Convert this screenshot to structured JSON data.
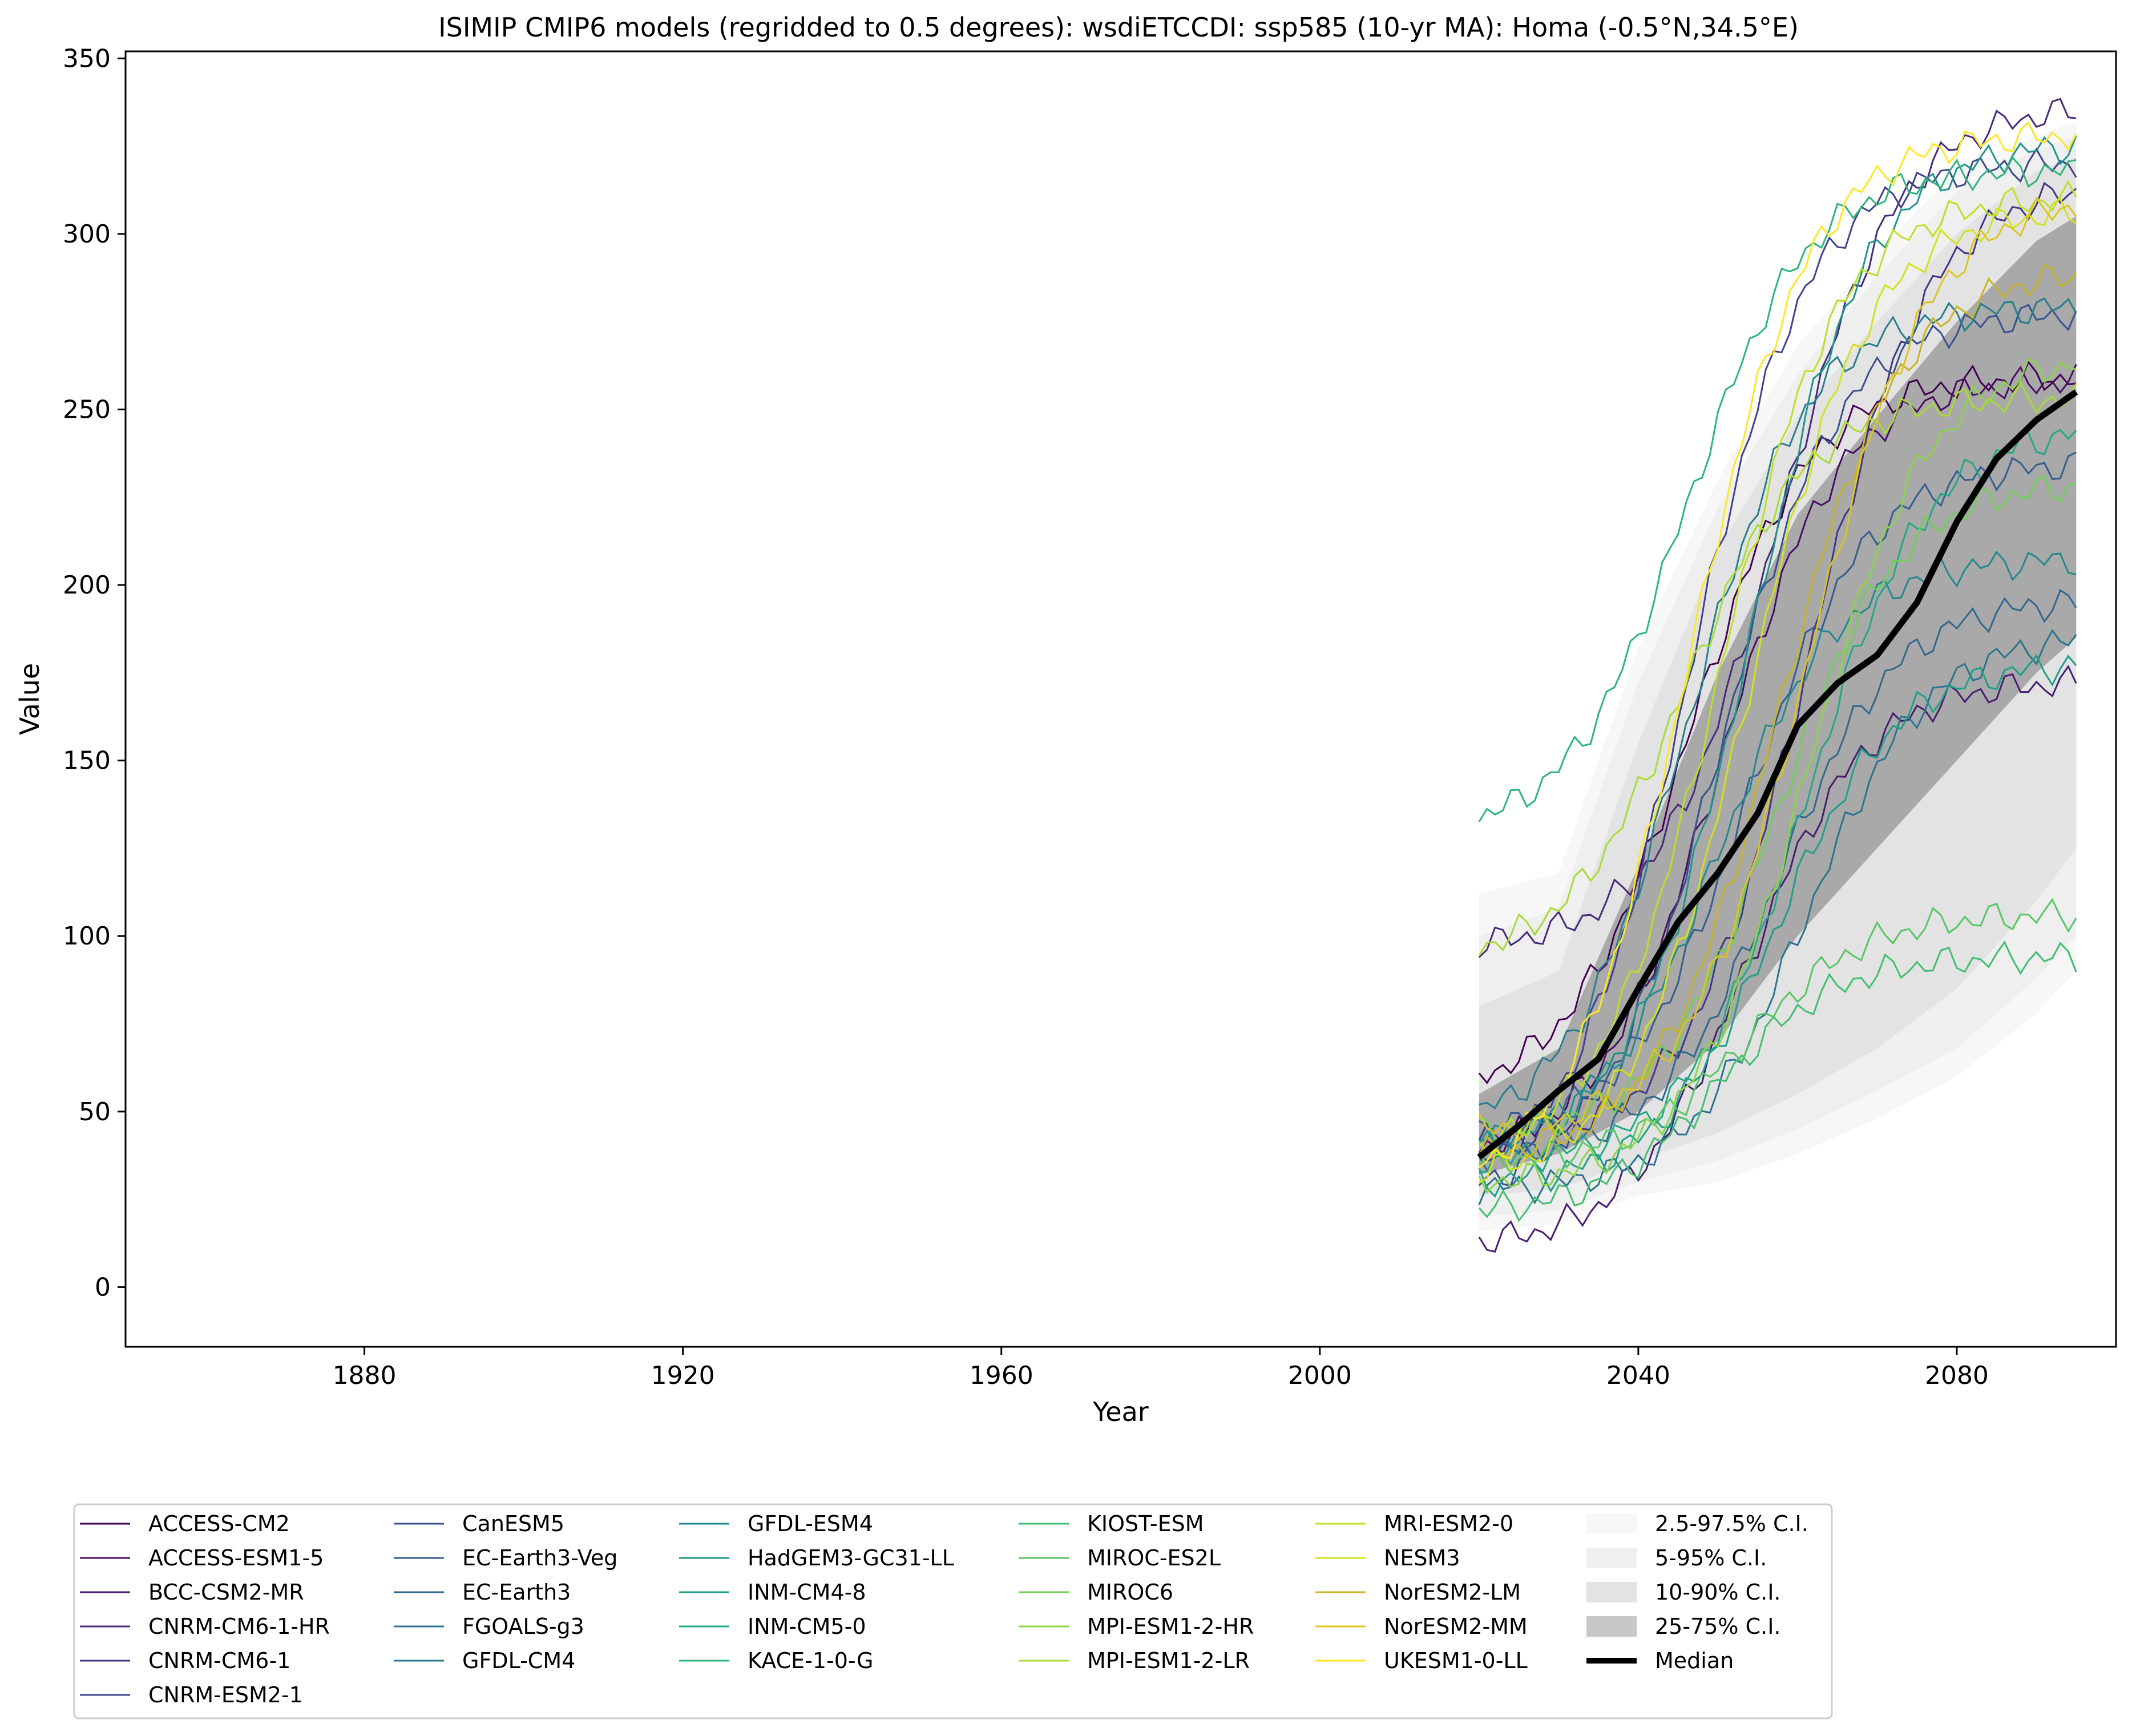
{
  "chart_data": {
    "type": "line",
    "title": "ISIMIP CMIP6 models (regridded to 0.5 degrees): wsdiETCCDI: ssp585 (10-yr MA): Homa (-0.5°N,34.5°E)",
    "xlabel": "Year",
    "ylabel": "Value",
    "xlim": [
      1850,
      2100
    ],
    "ylim": [
      -17,
      352
    ],
    "xticks": [
      1880,
      1920,
      1960,
      2000,
      2040,
      2080
    ],
    "yticks": [
      0,
      50,
      100,
      150,
      200,
      250,
      300,
      350
    ],
    "grid": false,
    "legend_position": "below",
    "series": [
      {
        "name": "ACCESS-CM2",
        "color": "#440154",
        "start": 60,
        "end": 259
      },
      {
        "name": "ACCESS-ESM1-5",
        "color": "#470f62",
        "start": 40,
        "end": 258
      },
      {
        "name": "BCC-CSM2-MR",
        "color": "#481d6f",
        "start": 13,
        "end": 172
      },
      {
        "name": "CNRM-CM6-1-HR",
        "color": "#472a7a",
        "start": 98,
        "end": 335
      },
      {
        "name": "CNRM-CM6-1",
        "color": "#433683",
        "start": 42,
        "end": 312
      },
      {
        "name": "CNRM-ESM2-1",
        "color": "#3f448a",
        "start": 35,
        "end": 320
      },
      {
        "name": "CanESM5",
        "color": "#3a508d",
        "start": 30,
        "end": 277
      },
      {
        "name": "EC-Earth3-Veg",
        "color": "#355d8d",
        "start": 45,
        "end": 234
      },
      {
        "name": "EC-Earth3",
        "color": "#30688e",
        "start": 38,
        "end": 195
      },
      {
        "name": "FGOALS-g3",
        "color": "#2b738e",
        "start": 28,
        "end": 184
      },
      {
        "name": "GFDL-CM4",
        "color": "#277e8e",
        "start": 50,
        "end": 279
      },
      {
        "name": "GFDL-ESM4",
        "color": "#23898e",
        "start": 42,
        "end": 207
      },
      {
        "name": "HadGEM3-GC31-LL",
        "color": "#1f948c",
        "start": 40,
        "end": 325
      },
      {
        "name": "INM-CM4-8",
        "color": "#1e9f88",
        "start": 30,
        "end": 177
      },
      {
        "name": "INM-CM5-0",
        "color": "#22a884",
        "start": 36,
        "end": 243
      },
      {
        "name": "KACE-1-0-G",
        "color": "#2fb47c",
        "start": 134,
        "end": 318
      },
      {
        "name": "KIOST-ESM",
        "color": "#42be71",
        "start": 22,
        "end": 94
      },
      {
        "name": "MIROC-ES2L",
        "color": "#57c665",
        "start": 36,
        "end": 106
      },
      {
        "name": "MIROC6",
        "color": "#70cf57",
        "start": 44,
        "end": 228
      },
      {
        "name": "MPI-ESM1-2-HR",
        "color": "#89d548",
        "start": 30,
        "end": 263
      },
      {
        "name": "MPI-ESM1-2-LR",
        "color": "#a8db34",
        "start": 97,
        "end": 253
      },
      {
        "name": "MRI-ESM2-0",
        "color": "#bddf26",
        "start": 40,
        "end": 310
      },
      {
        "name": "NESM3",
        "color": "#d2e21b",
        "start": 33,
        "end": 306
      },
      {
        "name": "NorESM2-LM",
        "color": "#c8b524",
        "start": 38,
        "end": 288
      },
      {
        "name": "NorESM2-MM",
        "color": "#dcc51f",
        "start": 45,
        "end": 308
      },
      {
        "name": "UKESM1-0-LL",
        "color": "#fde725",
        "start": 35,
        "end": 328
      }
    ],
    "median": {
      "name": "Median",
      "x": [
        2020,
        2025,
        2030,
        2035,
        2040,
        2045,
        2050,
        2055,
        2060,
        2065,
        2070,
        2075,
        2080,
        2085,
        2090,
        2095
      ],
      "values": [
        37,
        46,
        56,
        65,
        85,
        104,
        118,
        135,
        160,
        172,
        180,
        195,
        218,
        236,
        247,
        255
      ]
    },
    "bands": [
      {
        "name": "2.5-97.5% C.I.",
        "x": [
          2020,
          2030,
          2040,
          2050,
          2060,
          2070,
          2080,
          2090,
          2095
        ],
        "lower": [
          16,
          18,
          26,
          30,
          38,
          48,
          60,
          78,
          90
        ],
        "upper": [
          112,
          118,
          182,
          230,
          268,
          295,
          318,
          328,
          332
        ]
      },
      {
        "name": "5-95% C.I.",
        "x": [
          2020,
          2030,
          2040,
          2050,
          2060,
          2070,
          2080,
          2090,
          2095
        ],
        "lower": [
          20,
          22,
          30,
          36,
          45,
          56,
          68,
          88,
          100
        ],
        "upper": [
          100,
          108,
          172,
          222,
          260,
          288,
          312,
          324,
          328
        ]
      },
      {
        "name": "10-90% C.I.",
        "x": [
          2020,
          2030,
          2040,
          2050,
          2060,
          2070,
          2080,
          2090,
          2095
        ],
        "lower": [
          26,
          28,
          36,
          44,
          55,
          68,
          85,
          110,
          125
        ],
        "upper": [
          80,
          90,
          155,
          210,
          248,
          275,
          300,
          318,
          322
        ]
      },
      {
        "name": "25-75% C.I.",
        "x": [
          2020,
          2030,
          2040,
          2050,
          2060,
          2070,
          2080,
          2090,
          2095
        ],
        "lower": [
          32,
          38,
          50,
          70,
          100,
          125,
          150,
          175,
          185
        ],
        "upper": [
          55,
          68,
          120,
          175,
          220,
          248,
          275,
          298,
          305
        ]
      }
    ]
  },
  "colors": {
    "band_2_5_97_5": "#f7f7f7",
    "band_5_95": "#efefef",
    "band_10_90": "#e3e3e3",
    "band_25_75": "#c8c8c8",
    "band_25_75_plot": "#a9a9a9",
    "median": "#000000"
  }
}
